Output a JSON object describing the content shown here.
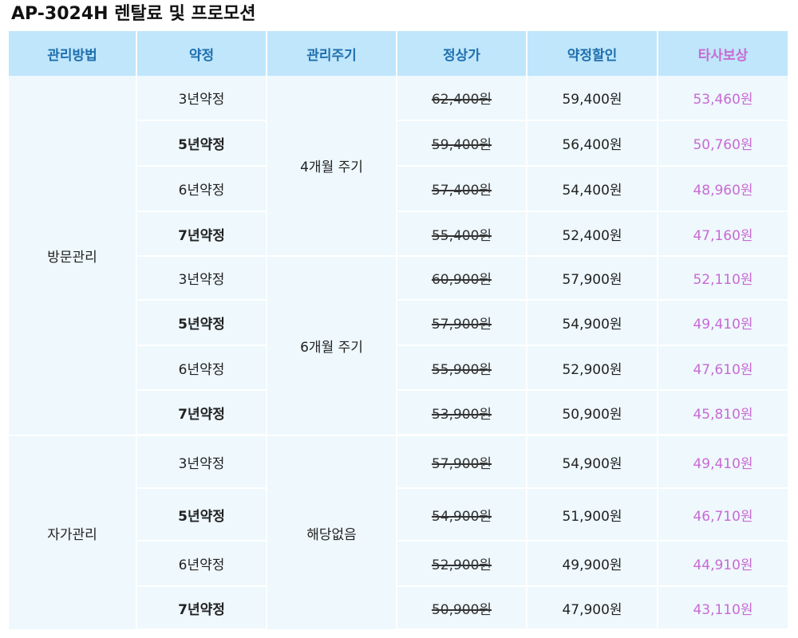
{
  "title": "AP-3024H 렌탈료 및 프로모션",
  "headers": {
    "method": "관리방법",
    "contract": "약정",
    "cycle": "관리주기",
    "list_price": "정상가",
    "discount": "약정할인",
    "other": "타사보상"
  },
  "colors": {
    "header_bg": "#bfe6fb",
    "header_text": "#1f6fae",
    "other_text": "#c86ad3",
    "cell_bg": "#eef8fd"
  },
  "groups": [
    {
      "method": "방문관리",
      "cycles": [
        {
          "label": "4개월 주기",
          "rows": [
            {
              "contract": "3년약정",
              "list": "62,400원",
              "discount": "59,400원",
              "other": "53,460원"
            },
            {
              "contract": "5년약정",
              "list": "59,400원",
              "discount": "56,400원",
              "other": "50,760원"
            },
            {
              "contract": "6년약정",
              "list": "57,400원",
              "discount": "54,400원",
              "other": "48,960원"
            },
            {
              "contract": "7년약정",
              "list": "55,400원",
              "discount": "52,400원",
              "other": "47,160원"
            }
          ]
        },
        {
          "label": "6개월 주기",
          "rows": [
            {
              "contract": "3년약정",
              "list": "60,900원",
              "discount": "57,900원",
              "other": "52,110원"
            },
            {
              "contract": "5년약정",
              "list": "57,900원",
              "discount": "54,900원",
              "other": "49,410원"
            },
            {
              "contract": "6년약정",
              "list": "55,900원",
              "discount": "52,900원",
              "other": "47,610원"
            },
            {
              "contract": "7년약정",
              "list": "53,900원",
              "discount": "50,900원",
              "other": "45,810원"
            }
          ]
        }
      ]
    },
    {
      "method": "자가관리",
      "cycles": [
        {
          "label": "해당없음",
          "rows": [
            {
              "contract": "3년약정",
              "list": "57,900원",
              "discount": "54,900원",
              "other": "49,410원"
            },
            {
              "contract": "5년약정",
              "list": "54,900원",
              "discount": "51,900원",
              "other": "46,710원"
            },
            {
              "contract": "6년약정",
              "list": "52,900원",
              "discount": "49,900원",
              "other": "44,910원"
            },
            {
              "contract": "7년약정",
              "list": "50,900원",
              "discount": "47,900원",
              "other": "43,110원"
            }
          ]
        }
      ]
    }
  ]
}
